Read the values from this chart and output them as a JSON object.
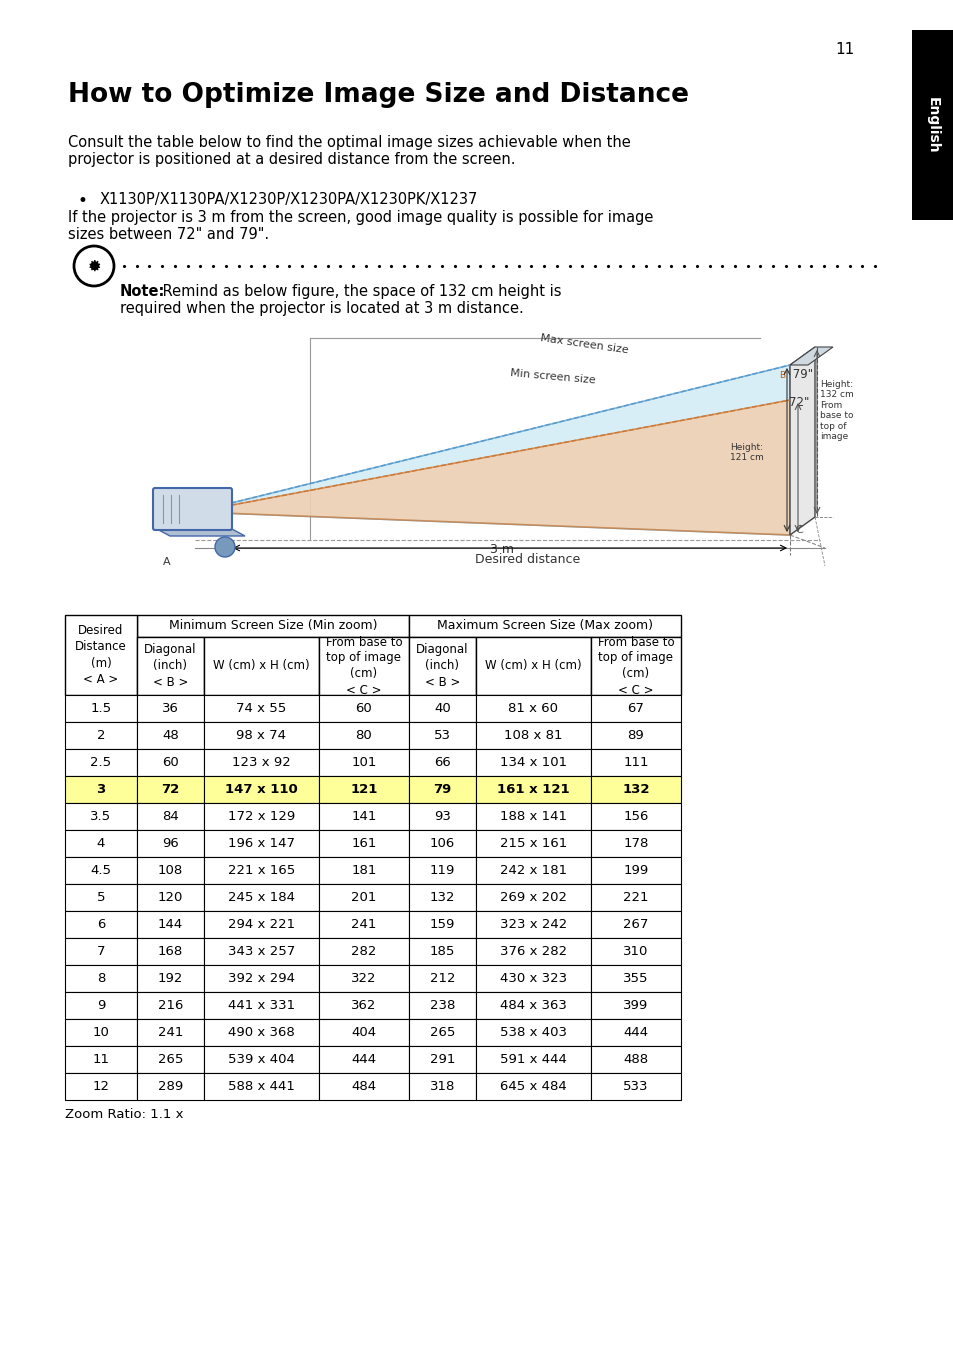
{
  "page_number": "11",
  "title": "How to Optimize Image Size and Distance",
  "intro_text_1": "Consult the table below to find the optimal image sizes achievable when the",
  "intro_text_2": "projector is positioned at a desired distance from the screen.",
  "bullet_header": "X1130P/X1130PA/X1230P/X1230PA/X1230PK/X1237",
  "bullet_body_1": "If the projector is 3 m from the screen, good image quality is possible for image",
  "bullet_body_2": "sizes between 72\" and 79\".",
  "note_bold": "Note:",
  "note_rest_1": " Remind as below figure, the space of 132 cm height is",
  "note_rest_2": "required when the projector is located at 3 m distance.",
  "sidebar_text": "English",
  "zoom_ratio": "Zoom Ratio: 1.1 x",
  "table_data": [
    [
      "1.5",
      "36",
      "74 x 55",
      "60",
      "40",
      "81 x 60",
      "67"
    ],
    [
      "2",
      "48",
      "98 x 74",
      "80",
      "53",
      "108 x 81",
      "89"
    ],
    [
      "2.5",
      "60",
      "123 x 92",
      "101",
      "66",
      "134 x 101",
      "111"
    ],
    [
      "3",
      "72",
      "147 x 110",
      "121",
      "79",
      "161 x 121",
      "132"
    ],
    [
      "3.5",
      "84",
      "172 x 129",
      "141",
      "93",
      "188 x 141",
      "156"
    ],
    [
      "4",
      "96",
      "196 x 147",
      "161",
      "106",
      "215 x 161",
      "178"
    ],
    [
      "4.5",
      "108",
      "221 x 165",
      "181",
      "119",
      "242 x 181",
      "199"
    ],
    [
      "5",
      "120",
      "245 x 184",
      "201",
      "132",
      "269 x 202",
      "221"
    ],
    [
      "6",
      "144",
      "294 x 221",
      "241",
      "159",
      "323 x 242",
      "267"
    ],
    [
      "7",
      "168",
      "343 x 257",
      "282",
      "185",
      "376 x 282",
      "310"
    ],
    [
      "8",
      "192",
      "392 x 294",
      "322",
      "212",
      "430 x 323",
      "355"
    ],
    [
      "9",
      "216",
      "441 x 331",
      "362",
      "238",
      "484 x 363",
      "399"
    ],
    [
      "10",
      "241",
      "490 x 368",
      "404",
      "265",
      "538 x 403",
      "444"
    ],
    [
      "11",
      "265",
      "539 x 404",
      "444",
      "291",
      "591 x 444",
      "488"
    ],
    [
      "12",
      "289",
      "588 x 441",
      "484",
      "318",
      "645 x 484",
      "533"
    ]
  ],
  "highlighted_row": 3,
  "highlight_color": "#ffff99",
  "background_color": "#ffffff",
  "diagram_blue_fill": "#c8e8f5",
  "diagram_orange_fill": "#f5c8a0",
  "diagram_blue_edge": "#5599cc",
  "diagram_orange_edge": "#cc7733"
}
